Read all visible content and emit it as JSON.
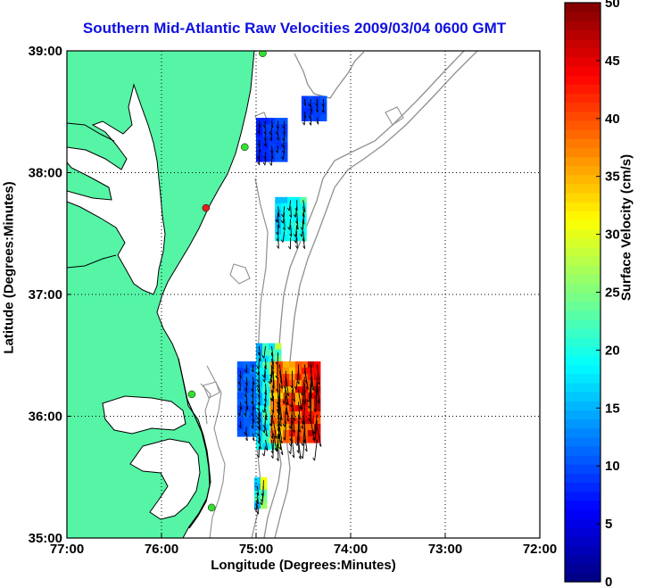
{
  "title": "Southern Mid-Atlantic Raw Velocities 2009/03/04 0600 GMT",
  "x_axis": {
    "label": "Longitude (Degrees:Minutes)",
    "ticks": [
      "77:00",
      "76:00",
      "75:00",
      "74:00",
      "73:00",
      "72:00"
    ]
  },
  "y_axis": {
    "label": "Latitude (Degrees:Minutes)",
    "ticks": [
      "39:00",
      "38:00",
      "37:00",
      "36:00",
      "35:00"
    ]
  },
  "colorbar": {
    "label": "Surface Velocity (cm/s)",
    "ticks": [
      "50",
      "45",
      "40",
      "35",
      "30",
      "25",
      "20",
      "15",
      "10",
      "5",
      "0"
    ],
    "min": 0,
    "max": 50
  },
  "colors": {
    "land": "#55f5a5",
    "coast": "#000000",
    "isobath": "#909090",
    "title": "#1010e0",
    "station_active": "#30e030",
    "station_alert": "#e02020"
  },
  "chart_data": {
    "type": "heatmap",
    "title": "Southern Mid-Atlantic Raw Velocities 2009/03/04 0600 GMT",
    "xlabel": "Longitude (Degrees:Minutes)",
    "ylabel": "Latitude (Degrees:Minutes)",
    "xlim": [
      -77,
      -72
    ],
    "ylim": [
      35,
      39
    ],
    "grid": true,
    "colorbar_range": [
      0,
      50
    ],
    "stations": [
      {
        "lon": -74.93,
        "lat": 38.98,
        "status": "active"
      },
      {
        "lon": -75.12,
        "lat": 38.21,
        "status": "active"
      },
      {
        "lon": -75.53,
        "lat": 37.71,
        "status": "alert"
      },
      {
        "lon": -75.68,
        "lat": 36.18,
        "status": "active"
      },
      {
        "lon": -75.47,
        "lat": 35.25,
        "status": "active"
      }
    ],
    "regions": [
      {
        "name": "",
        "lon": [
          -75.0,
          -74.72
        ],
        "lat": [
          38.14,
          38.45
        ],
        "speed": [
          7,
          11
        ]
      },
      {
        "name": "",
        "lon": [
          -74.52,
          -74.32
        ],
        "lat": [
          38.45,
          38.63
        ],
        "speed": [
          8,
          11
        ]
      },
      {
        "name": "",
        "lon": [
          -74.8,
          -74.52
        ],
        "lat": [
          37.45,
          37.8
        ],
        "speed": [
          14,
          24
        ]
      },
      {
        "name": "",
        "lon": [
          -75.2,
          -74.95
        ],
        "lat": [
          35.85,
          36.45
        ],
        "speed": [
          9,
          14
        ]
      },
      {
        "name": "",
        "lon": [
          -75.0,
          -74.75
        ],
        "lat": [
          35.75,
          36.6
        ],
        "speed": [
          13,
          30
        ]
      },
      {
        "name": "",
        "lon": [
          -74.85,
          -74.35
        ],
        "lat": [
          35.8,
          36.45
        ],
        "speed": [
          30,
          50
        ]
      },
      {
        "name": "",
        "lon": [
          -75.02,
          -74.9
        ],
        "lat": [
          35.25,
          35.5
        ],
        "speed": [
          14,
          36
        ]
      }
    ]
  }
}
